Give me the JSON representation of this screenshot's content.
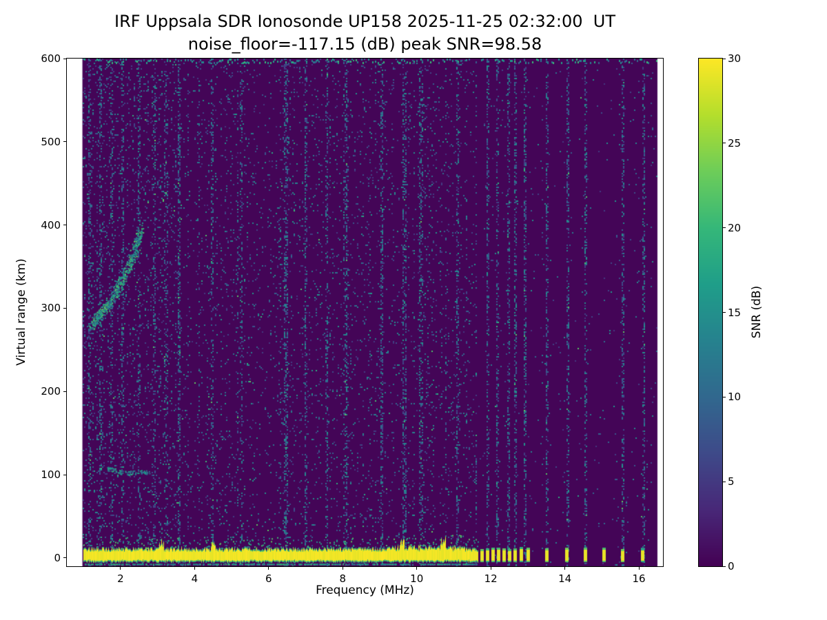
{
  "chart_data": {
    "type": "heatmap",
    "title": "IRF Uppsala SDR Ionosonde UP158 2025-11-25 02:32:00  UT",
    "subtitle": "noise_floor=-117.15 (dB) peak SNR=98.58",
    "xlabel": "Frequency (MHz)",
    "ylabel": "Virtual range (km)",
    "colorbar_label": "SNR (dB)",
    "station": "UP158",
    "timestamp_ut": "2025-11-25 02:32:00",
    "noise_floor_db": -117.15,
    "peak_snr_db": 98.58,
    "colormap": "viridis",
    "x_ticks": [
      2,
      4,
      6,
      8,
      10,
      12,
      14,
      16
    ],
    "y_ticks": [
      0,
      100,
      200,
      300,
      400,
      500,
      600
    ],
    "colorbar_ticks": [
      0,
      5,
      10,
      15,
      20,
      25,
      30
    ],
    "xlim": [
      0.55,
      16.65
    ],
    "ylim": [
      -10,
      600
    ],
    "clim": [
      0,
      30
    ],
    "data_extent_mhz": [
      0.97,
      16.5
    ],
    "features": {
      "background_snr_db": 0,
      "speckle_noise": {
        "low_band_max_mhz": 3.6,
        "mid_band_max_mhz": 11.6,
        "low_band_density": 0.1,
        "mid_band_density": 0.06,
        "high_band_density": 0.012
      },
      "rfi_columns_mhz": [
        1.15,
        1.45,
        1.75,
        2.05,
        2.5,
        2.9,
        3.2,
        3.55,
        4.45,
        5.25,
        6.45,
        7.0,
        7.55,
        8.05,
        9.05,
        9.65,
        10.1,
        11.1,
        11.9,
        12.15,
        12.45,
        12.65,
        12.9,
        13.5,
        14.05,
        14.55,
        15.55,
        16.1
      ],
      "ionospheric_echo_trace_mhz_km": [
        [
          1.2,
          280
        ],
        [
          1.5,
          295
        ],
        [
          1.8,
          315
        ],
        [
          2.1,
          340
        ],
        [
          2.35,
          365
        ],
        [
          2.55,
          395
        ]
      ],
      "secondary_trace_mhz_km": [
        [
          1.65,
          108
        ],
        [
          2.1,
          102
        ],
        [
          2.75,
          104
        ]
      ],
      "ground_return_band": {
        "start_mhz": 1.0,
        "end_mhz": 11.65,
        "top_km": 12,
        "bottom_km": -4,
        "peak_snr_db": 30
      },
      "band_spikes_mhz": [
        3.1,
        4.5,
        9.6,
        10.7
      ],
      "sub_band_echo_km": -7,
      "pulse_mhz": [
        11.75,
        11.9,
        12.05,
        12.2,
        12.35,
        12.5,
        12.65,
        12.82,
        13.0,
        13.5,
        14.05,
        14.55,
        15.05,
        15.55,
        16.1
      ]
    }
  }
}
